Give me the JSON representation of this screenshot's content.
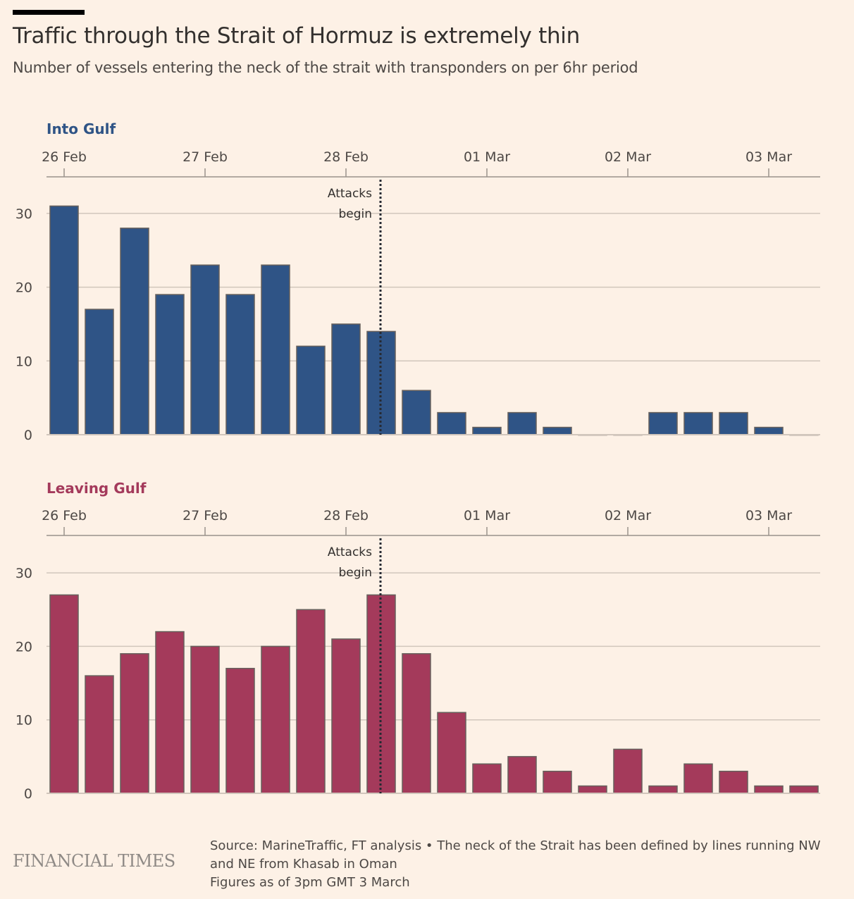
{
  "header": {
    "title": "Traffic through the Strait of Hormuz is extremely thin",
    "subtitle": "Number of vessels entering the neck of the strait with transponders on per 6hr period"
  },
  "footer": {
    "logo": "FINANCIAL TIMES",
    "source_line1": "Source: MarineTraffic, FT analysis • The neck of the Strait has been defined by lines running NW",
    "source_line2": "and NE from Khasab in Oman",
    "source_line3": "Figures as of 3pm GMT 3 March"
  },
  "colors": {
    "background": "#fdf1e6",
    "into_gulf": "#2f5486",
    "leaving_gulf": "#a43a5b",
    "bar_stroke": "#66605c",
    "gridline": "#d1c6bc",
    "axis": "#9a928c"
  },
  "chart_data": [
    {
      "type": "bar",
      "title": "Into Gulf",
      "color": "#2f5486",
      "xlabel": "",
      "ylabel": "",
      "period": "6hr",
      "x_ticks": [
        "26 Feb",
        "27 Feb",
        "28 Feb",
        "01 Mar",
        "02 Mar",
        "03 Mar"
      ],
      "y_ticks": [
        0,
        10,
        20,
        30
      ],
      "ylim": [
        0,
        35
      ],
      "grid": true,
      "annotation": {
        "label_line1": "Attacks",
        "label_line2": "begin",
        "at_period_index": 9
      },
      "values": [
        31,
        17,
        28,
        19,
        23,
        19,
        23,
        12,
        15,
        14,
        6,
        3,
        1,
        3,
        1,
        0,
        0,
        3,
        3,
        3,
        1,
        0
      ]
    },
    {
      "type": "bar",
      "title": "Leaving Gulf",
      "color": "#a43a5b",
      "xlabel": "",
      "ylabel": "",
      "period": "6hr",
      "x_ticks": [
        "26 Feb",
        "27 Feb",
        "28 Feb",
        "01 Mar",
        "02 Mar",
        "03 Mar"
      ],
      "y_ticks": [
        0,
        10,
        20,
        30
      ],
      "ylim": [
        0,
        35
      ],
      "grid": true,
      "annotation": {
        "label_line1": "Attacks",
        "label_line2": "begin",
        "at_period_index": 9
      },
      "values": [
        27,
        16,
        19,
        22,
        20,
        17,
        20,
        25,
        21,
        27,
        19,
        11,
        4,
        5,
        3,
        1,
        6,
        1,
        4,
        3,
        1,
        1
      ]
    }
  ]
}
